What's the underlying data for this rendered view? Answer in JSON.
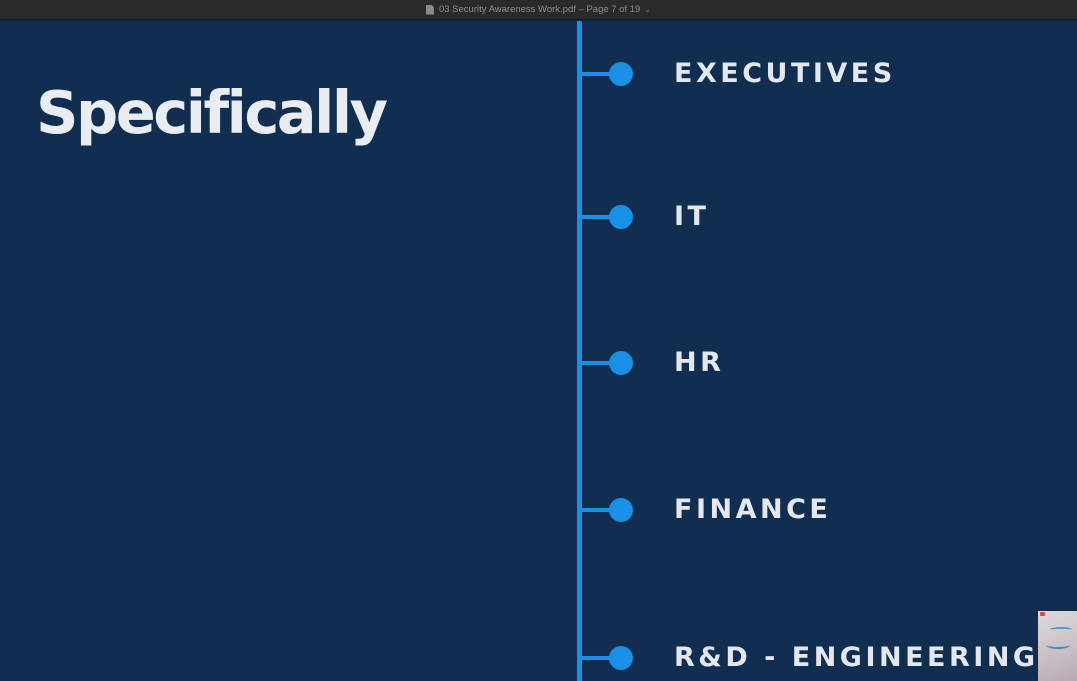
{
  "window": {
    "title": "03 Security Awareness Work.pdf – Page 7 of 19",
    "title_chevron": "⌄",
    "doc_icon": "pdf-document-icon"
  },
  "slide": {
    "heading": "Specifically",
    "timeline": [
      {
        "label": "EXECUTIVES"
      },
      {
        "label": "IT"
      },
      {
        "label": "HR"
      },
      {
        "label": "FINANCE"
      },
      {
        "label": "R&D - ENGINEERING"
      }
    ]
  },
  "colors": {
    "background": "#112e51",
    "accent": "#1a8fe6",
    "text": "#e4e8ee"
  }
}
